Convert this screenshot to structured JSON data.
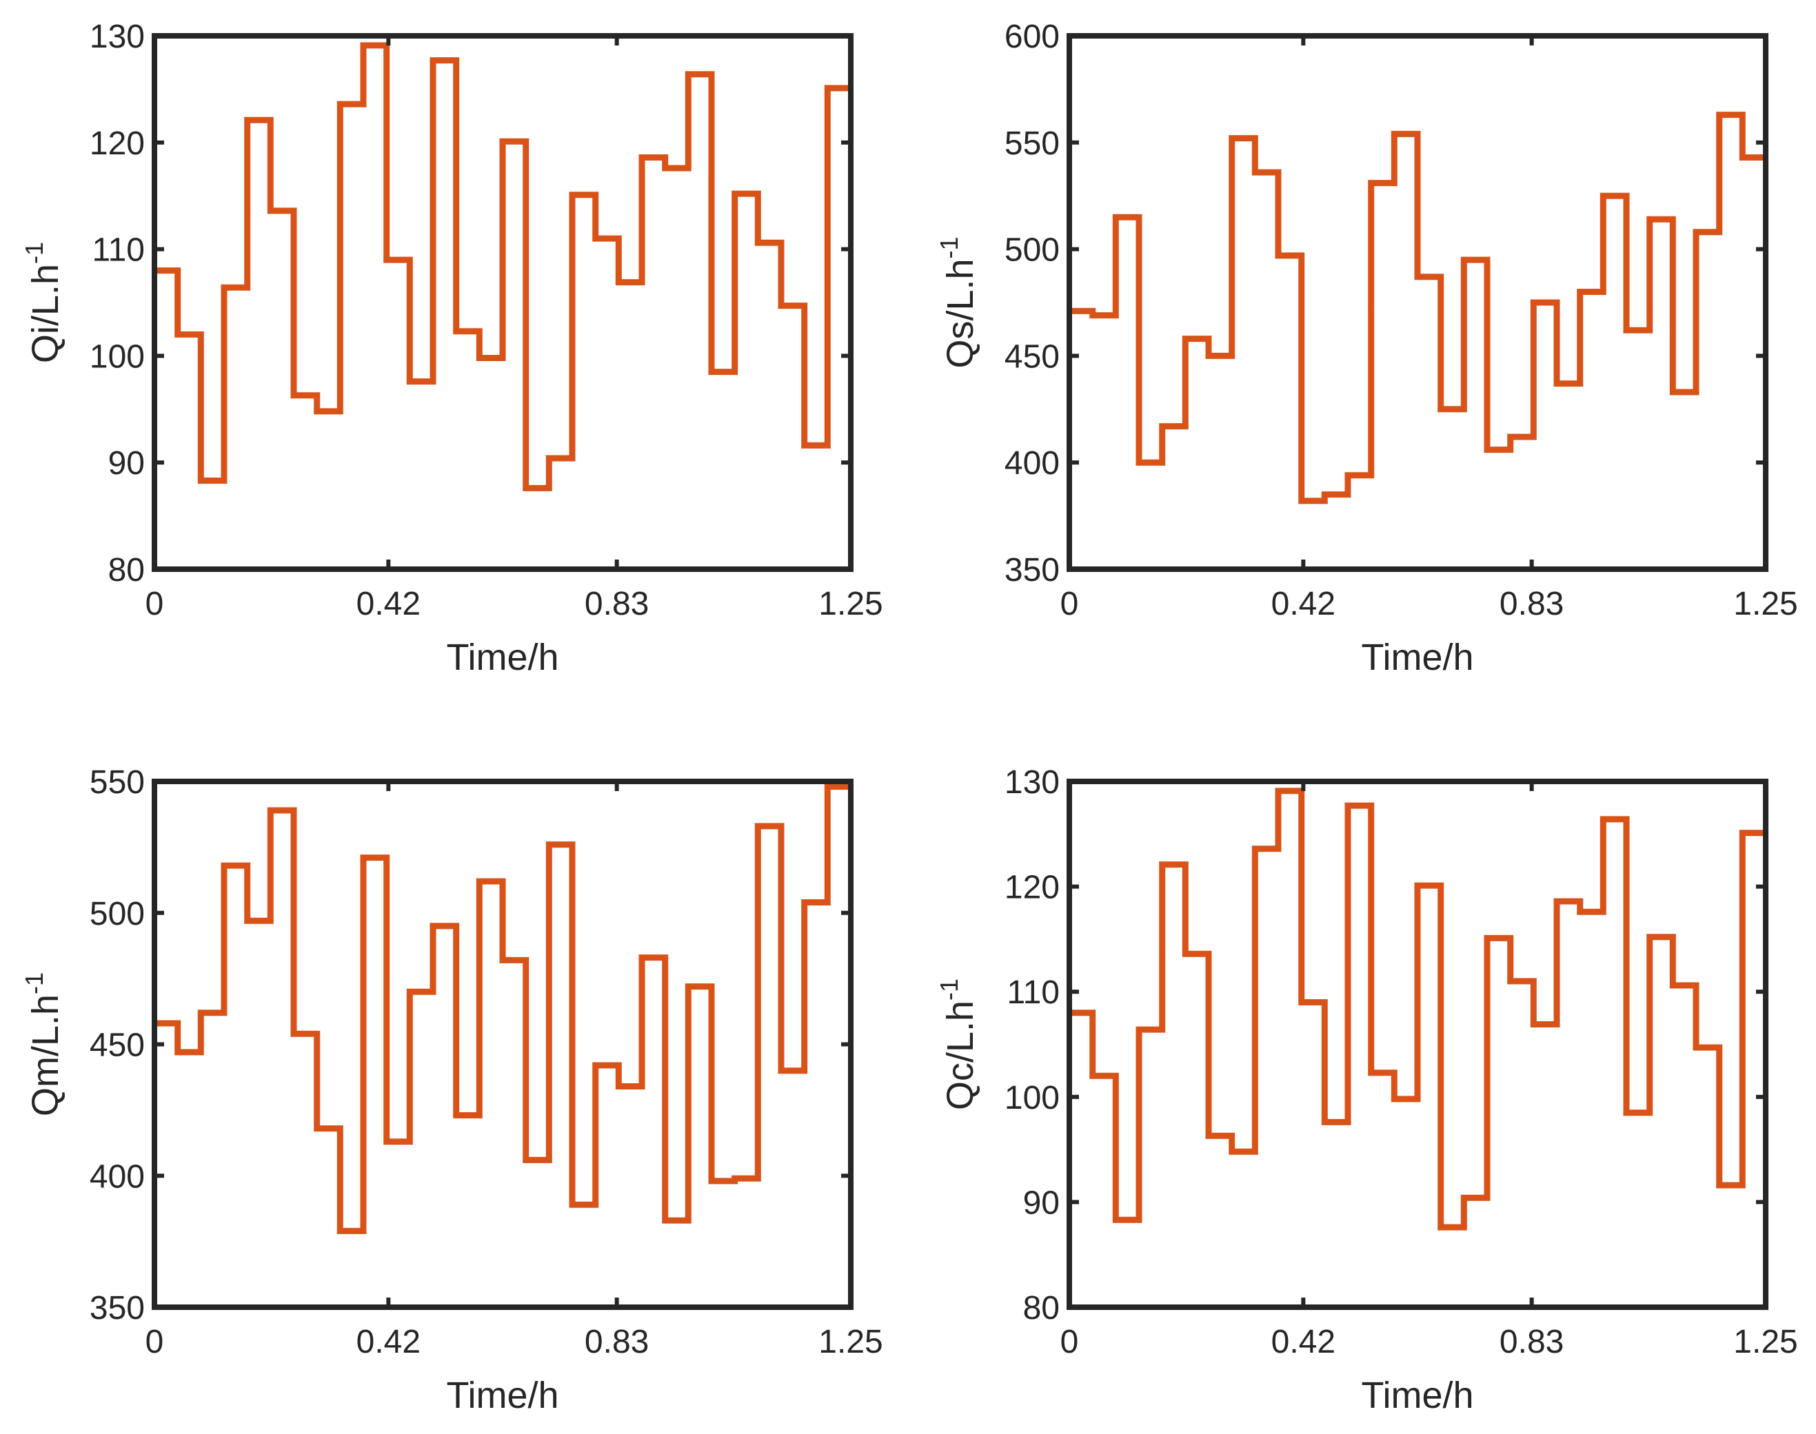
{
  "figure_title": "",
  "colors": {
    "line": "#D95319",
    "axes": "#262626",
    "background": "#ffffff"
  },
  "chart_data": [
    {
      "type": "line",
      "step": true,
      "xlabel": "Time/h",
      "ylabel": "Qi/L.h",
      "ylabel_sup": "-1",
      "xlim": [
        0,
        1.25
      ],
      "ylim": [
        80,
        130
      ],
      "xticks": [
        0,
        0.42,
        0.83,
        1.25
      ],
      "xtick_labels": [
        "0",
        "0.42",
        "0.83",
        "1.25"
      ],
      "yticks": [
        80,
        90,
        100,
        110,
        120,
        130
      ],
      "ytick_labels": [
        "80",
        "90",
        "100",
        "110",
        "120",
        "130"
      ],
      "series": [
        {
          "name": "Qi",
          "x": [
            0,
            0.0417,
            0.0833,
            0.125,
            0.1667,
            0.2083,
            0.25,
            0.2917,
            0.3333,
            0.375,
            0.4167,
            0.4583,
            0.5,
            0.5417,
            0.5833,
            0.625,
            0.6667,
            0.7083,
            0.75,
            0.7917,
            0.8333,
            0.875,
            0.9167,
            0.9583,
            1.0,
            1.0417,
            1.0833,
            1.125,
            1.1667,
            1.2083,
            1.25
          ],
          "values": [
            108,
            102,
            88.3,
            106.4,
            122.1,
            113.6,
            96.3,
            94.8,
            123.6,
            129.1,
            109.0,
            97.6,
            127.7,
            102.3,
            99.8,
            120.1,
            87.6,
            90.4,
            115.1,
            111.0,
            106.9,
            118.6,
            117.6,
            126.4,
            98.5,
            115.2,
            110.6,
            104.7,
            91.6,
            125.1,
            125.1
          ]
        }
      ]
    },
    {
      "type": "line",
      "step": true,
      "xlabel": "Time/h",
      "ylabel": "Qs/L.h",
      "ylabel_sup": "-1",
      "xlim": [
        0,
        1.25
      ],
      "ylim": [
        350,
        600
      ],
      "xticks": [
        0,
        0.42,
        0.83,
        1.25
      ],
      "xtick_labels": [
        "0",
        "0.42",
        "0.83",
        "1.25"
      ],
      "yticks": [
        350,
        400,
        450,
        500,
        550,
        600
      ],
      "ytick_labels": [
        "350",
        "400",
        "450",
        "500",
        "550",
        "600"
      ],
      "series": [
        {
          "name": "Qs",
          "x": [
            0,
            0.0417,
            0.0833,
            0.125,
            0.1667,
            0.2083,
            0.25,
            0.2917,
            0.3333,
            0.375,
            0.4167,
            0.4583,
            0.5,
            0.5417,
            0.5833,
            0.625,
            0.6667,
            0.7083,
            0.75,
            0.7917,
            0.8333,
            0.875,
            0.9167,
            0.9583,
            1.0,
            1.0417,
            1.0833,
            1.125,
            1.1667,
            1.2083,
            1.25
          ],
          "values": [
            471,
            469,
            515,
            400,
            417,
            458,
            450,
            552,
            536,
            497,
            382,
            385,
            394,
            531,
            554,
            487,
            425,
            495,
            406,
            412,
            475,
            437,
            480,
            525,
            462,
            514,
            433,
            508,
            563,
            543,
            543
          ]
        }
      ]
    },
    {
      "type": "line",
      "step": true,
      "xlabel": "Time/h",
      "ylabel": "Qm/L.h",
      "ylabel_sup": "-1",
      "xlim": [
        0,
        1.25
      ],
      "ylim": [
        350,
        550
      ],
      "xticks": [
        0,
        0.42,
        0.83,
        1.25
      ],
      "xtick_labels": [
        "0",
        "0.42",
        "0.83",
        "1.25"
      ],
      "yticks": [
        350,
        400,
        450,
        500,
        550
      ],
      "ytick_labels": [
        "350",
        "400",
        "450",
        "500",
        "550"
      ],
      "series": [
        {
          "name": "Qm",
          "x": [
            0,
            0.0417,
            0.0833,
            0.125,
            0.1667,
            0.2083,
            0.25,
            0.2917,
            0.3333,
            0.375,
            0.4167,
            0.4583,
            0.5,
            0.5417,
            0.5833,
            0.625,
            0.6667,
            0.7083,
            0.75,
            0.7917,
            0.8333,
            0.875,
            0.9167,
            0.9583,
            1.0,
            1.0417,
            1.0833,
            1.125,
            1.1667,
            1.2083,
            1.25
          ],
          "values": [
            458,
            447,
            462,
            518,
            497,
            539,
            454,
            418,
            379,
            521,
            413,
            470,
            495,
            423,
            512,
            482,
            406,
            526,
            389,
            442,
            434,
            483,
            383,
            472,
            398,
            399,
            533,
            440,
            504,
            548,
            548
          ]
        }
      ]
    },
    {
      "type": "line",
      "step": true,
      "xlabel": "Time/h",
      "ylabel": "Qc/L.h",
      "ylabel_sup": "-1",
      "xlim": [
        0,
        1.25
      ],
      "ylim": [
        80,
        130
      ],
      "xticks": [
        0,
        0.42,
        0.83,
        1.25
      ],
      "xtick_labels": [
        "0",
        "0.42",
        "0.83",
        "1.25"
      ],
      "yticks": [
        80,
        90,
        100,
        110,
        120,
        130
      ],
      "ytick_labels": [
        "80",
        "90",
        "100",
        "110",
        "120",
        "130"
      ],
      "series": [
        {
          "name": "Qc",
          "x": [
            0,
            0.0417,
            0.0833,
            0.125,
            0.1667,
            0.2083,
            0.25,
            0.2917,
            0.3333,
            0.375,
            0.4167,
            0.4583,
            0.5,
            0.5417,
            0.5833,
            0.625,
            0.6667,
            0.7083,
            0.75,
            0.7917,
            0.8333,
            0.875,
            0.9167,
            0.9583,
            1.0,
            1.0417,
            1.0833,
            1.125,
            1.1667,
            1.2083,
            1.25
          ],
          "values": [
            108,
            102,
            88.3,
            106.4,
            122.1,
            113.6,
            96.3,
            94.8,
            123.6,
            129.1,
            109.0,
            97.6,
            127.7,
            102.3,
            99.8,
            120.1,
            87.6,
            90.4,
            115.1,
            111.0,
            106.9,
            118.6,
            117.6,
            126.4,
            98.5,
            115.2,
            110.6,
            104.7,
            91.6,
            125.1,
            125.1
          ]
        }
      ]
    }
  ]
}
